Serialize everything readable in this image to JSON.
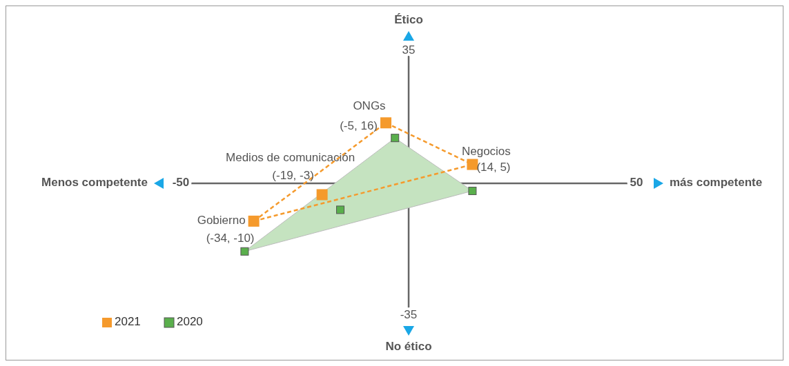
{
  "chart_data": {
    "type": "scatter",
    "xlabel": "más competente",
    "ylabel": "Ético",
    "xlim": [
      -50,
      50
    ],
    "ylim": [
      -35,
      35
    ],
    "xticks": [
      -50,
      50
    ],
    "yticks": [
      -35,
      35
    ],
    "legend": "bottom left",
    "marker": "square",
    "annotations": [
      {
        "text": "ONGs",
        "x": -5,
        "y": 16
      },
      {
        "text": "Negocios",
        "x": 14,
        "y": 5
      },
      {
        "text": "Medios de comunicación",
        "x": -19,
        "y": -3
      },
      {
        "text": "Gobierno",
        "x": -34,
        "y": -10
      },
      "Menos competente",
      "No ético"
    ],
    "series": [
      {
        "type": "area",
        "marker": "none",
        "color": "#c5e3c0",
        "x": [
          -36,
          -3,
          14,
          -36
        ],
        "values": [
          -18,
          12,
          -2,
          -18
        ]
      },
      {
        "type": "line",
        "marker": "none",
        "color": "#f59a2c",
        "line_style": "dashed",
        "x": [
          -34,
          -5
        ],
        "values": [
          -10,
          16
        ]
      },
      {
        "type": "line",
        "marker": "none",
        "color": "#f59a2c",
        "line_style": "dashed",
        "x": [
          -5,
          14
        ],
        "values": [
          16,
          5
        ]
      },
      {
        "type": "line",
        "marker": "none",
        "color": "#f59a2c",
        "line_style": "dashed",
        "x": [
          -34,
          14
        ],
        "values": [
          -10,
          5
        ]
      },
      {
        "name": "2020",
        "color": "#5aaf4c",
        "x": [
          -3,
          14,
          -15,
          -36
        ],
        "values": [
          12,
          -2,
          -7,
          -18
        ]
      },
      {
        "name": "2021",
        "color": "#f59a2c",
        "x": [
          -5,
          14,
          -19,
          -34
        ],
        "values": [
          16,
          5,
          -3,
          -10
        ],
        "value_labels": [
          "(-5, 16)",
          "(14, 5)",
          "(-19, -3)",
          "(-34, -10)"
        ]
      }
    ]
  }
}
